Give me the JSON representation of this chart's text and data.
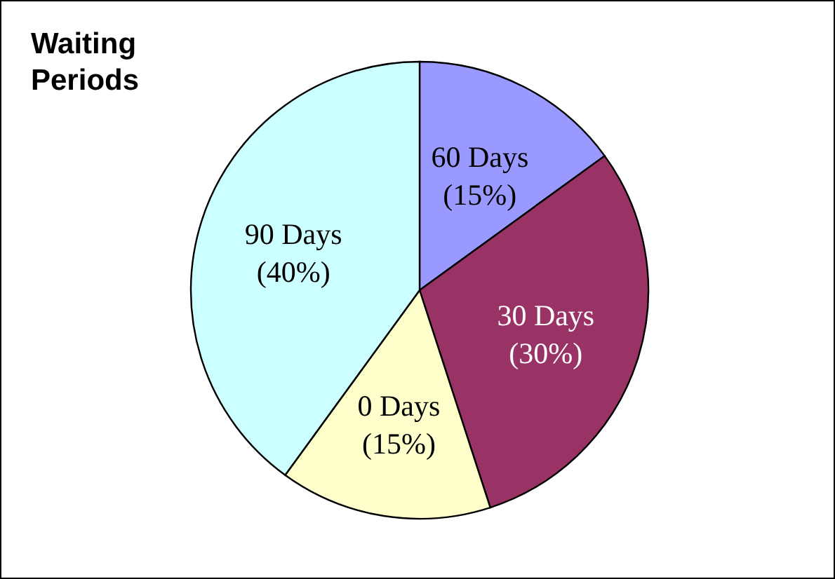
{
  "chart_data": {
    "type": "pie",
    "title": "Waiting Periods",
    "categories": [
      "60 Days",
      "30 Days",
      "0 Days",
      "90 Days"
    ],
    "values": [
      15,
      30,
      15,
      40
    ],
    "value_labels": [
      "(15%)",
      "(30%)",
      "(15%)",
      "(40%)"
    ],
    "colors": [
      "#9999ff",
      "#993366",
      "#ffffcc",
      "#ccffff"
    ]
  }
}
